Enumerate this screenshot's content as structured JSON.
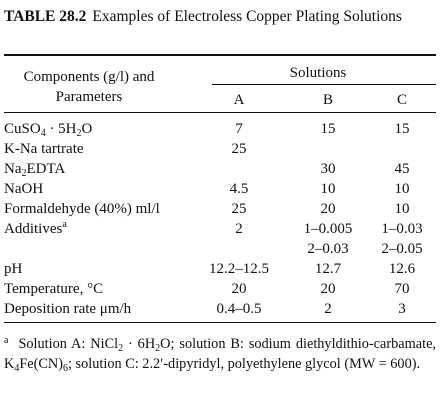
{
  "table": {
    "number": "TABLE 28.2",
    "title": "Examples of Electroless Copper Plating Solutions",
    "header": {
      "components_line1": "Components (g/l) and",
      "components_line2": "Parameters",
      "solutions": "Solutions",
      "columns": [
        "A",
        "B",
        "C"
      ]
    },
    "rows": [
      {
        "label": "CuSO",
        "label_sub": "4",
        "label_after": " · 5H",
        "label_sub2": "2",
        "label_end": "O",
        "a": "7",
        "b": "15",
        "c": "15"
      },
      {
        "label": "K-Na tartrate",
        "a": "25",
        "b": "",
        "c": ""
      },
      {
        "label": "Na",
        "label_sub": "2",
        "label_after": "EDTA",
        "a": "",
        "b": "30",
        "c": "45"
      },
      {
        "label": "NaOH",
        "a": "4.5",
        "b": "10",
        "c": "10"
      },
      {
        "label": "Formaldehyde (40%) ml/l",
        "a": "25",
        "b": "20",
        "c": "10"
      },
      {
        "label": "Additives",
        "label_sup": "a",
        "a": "2",
        "b": "1–0.005",
        "c": "1–0.03",
        "b2": "2–0.03",
        "c2": "2–0.05"
      },
      {
        "label": "pH",
        "a": "12.2–12.5",
        "b": "12.7",
        "c": "12.6"
      },
      {
        "label": "Temperature, °C",
        "a": "20",
        "b": "20",
        "c": "70"
      },
      {
        "label": "Deposition rate μm/h",
        "a": "0.4–0.5",
        "b": "2",
        "c": "3"
      }
    ],
    "footnote": {
      "mark": "a",
      "part1": "Solution A: NiCl",
      "sub1": "2",
      "part2": " · 6H",
      "sub2": "2",
      "part3": "O; solution B: sodium diethyldithio-carbamate, K",
      "sub3": "4",
      "part4": "Fe(CN)",
      "sub4": "6",
      "part5": "; solution C: 2.2′-dipyridyl, polyethylene glycol (MW = 600)."
    }
  }
}
